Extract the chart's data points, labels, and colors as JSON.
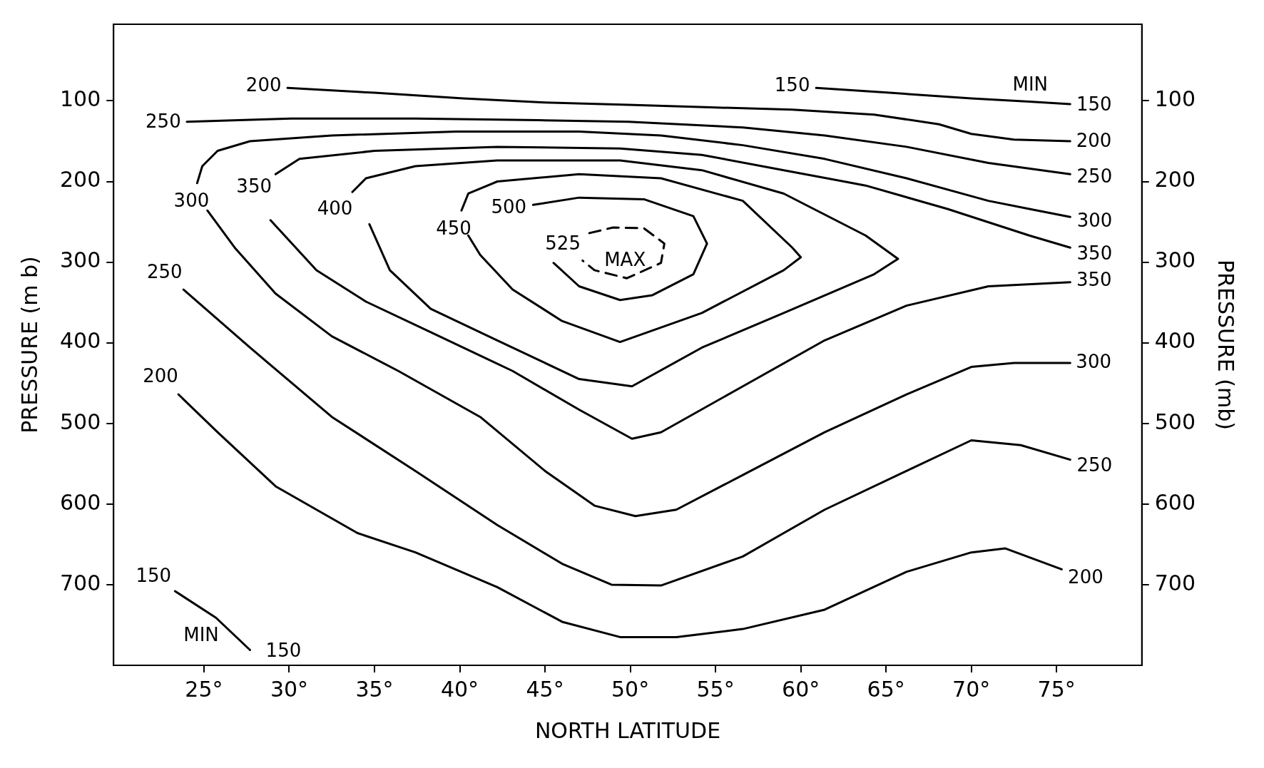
{
  "chart_data": {
    "type": "line",
    "xlabel": "NORTH LATITUDE",
    "ylabel": "PRESSURE (m b)",
    "y2label": "PRESSURE (mb)",
    "xlim": [
      19.7,
      80
    ],
    "xticks": [
      {
        "value": 25,
        "label": "25°"
      },
      {
        "value": 30,
        "label": "30°"
      },
      {
        "value": 35,
        "label": "35°"
      },
      {
        "value": 40,
        "label": "40°"
      },
      {
        "value": 45,
        "label": "45°"
      },
      {
        "value": 50,
        "label": "50°"
      },
      {
        "value": 55,
        "label": "55°"
      },
      {
        "value": 60,
        "label": "60°"
      },
      {
        "value": 65,
        "label": "65°"
      },
      {
        "value": 70,
        "label": "70°"
      },
      {
        "value": 75,
        "label": "75°"
      }
    ],
    "ylim": [
      800,
      5
    ],
    "yticks": [
      100,
      200,
      300,
      400,
      500,
      600,
      700
    ],
    "y2lim": [
      800,
      5
    ],
    "y2ticks": [
      100,
      200,
      300,
      400,
      500,
      600,
      700
    ],
    "grid": false,
    "legend": false,
    "marker": "none",
    "series": [
      {
        "color": "#000000",
        "x": [
          60.9,
          65.2,
          70.0,
          73.4,
          75.8
        ],
        "values": [
          84,
          90,
          97,
          101,
          104
        ]
      },
      {
        "color": "#000000",
        "x": [
          23.3,
          25.7,
          27.7
        ],
        "values": [
          708,
          741,
          781
        ]
      },
      {
        "color": "#000000",
        "x": [
          29.9,
          35.0,
          40.2,
          45.0,
          49.9,
          54.7,
          59.5,
          64.3,
          68.1,
          70.0,
          72.5,
          75.8
        ],
        "values": [
          84,
          90,
          97,
          102,
          105,
          108,
          111,
          117,
          129,
          141,
          148,
          150
        ]
      },
      {
        "color": "#000000",
        "x": [
          23.5,
          25.8,
          29.2,
          34.0,
          37.4,
          42.2,
          46.0,
          49.4,
          52.7,
          56.6,
          61.4,
          66.2,
          70.0,
          72.0,
          75.3
        ],
        "values": [
          464,
          511,
          578,
          636,
          660,
          703,
          746,
          765,
          765,
          755,
          731,
          684,
          660,
          655,
          681
        ]
      },
      {
        "color": "#000000",
        "x": [
          24.0,
          30.1,
          37.4,
          44.6,
          49.9,
          56.6,
          61.4,
          66.2,
          71.0,
          75.8
        ],
        "values": [
          126,
          122,
          122,
          124,
          126,
          133,
          143,
          157,
          177,
          191
        ]
      },
      {
        "color": "#000000",
        "x": [
          23.8,
          27.7,
          32.5,
          37.4,
          42.2,
          46.0,
          48.9,
          51.8,
          56.6,
          61.4,
          66.2,
          70.0,
          72.9,
          75.8
        ],
        "values": [
          334,
          406,
          492,
          559,
          626,
          674,
          700,
          701,
          665,
          607,
          559,
          521,
          527,
          545
        ]
      },
      {
        "color": "#000000",
        "x": [
          24.6,
          24.9,
          25.8,
          27.7,
          32.5,
          39.8,
          47.0,
          51.8,
          56.6,
          61.4,
          66.2,
          71.0,
          73.4,
          75.8
        ],
        "values": [
          202,
          181,
          162,
          150,
          143,
          138,
          138,
          143,
          155,
          172,
          196,
          224,
          234,
          244
        ]
      },
      {
        "color": "#000000",
        "x": [
          25.2,
          26.8,
          29.2,
          32.5,
          36.4,
          41.2,
          45.0,
          47.9,
          50.3,
          52.7,
          56.6,
          61.4,
          66.2,
          70.0,
          72.5,
          75.8
        ],
        "values": [
          236,
          282,
          339,
          392,
          435,
          492,
          559,
          602,
          615,
          607,
          564,
          511,
          464,
          430,
          425,
          425
        ]
      },
      {
        "color": "#000000",
        "x": [
          29.2,
          30.6,
          35.0,
          42.2,
          49.4,
          54.2,
          59.0,
          63.8,
          68.6,
          73.4,
          75.8
        ],
        "values": [
          191,
          172,
          162,
          157,
          159,
          167,
          186,
          205,
          234,
          267,
          282
        ]
      },
      {
        "color": "#000000",
        "x": [
          28.9,
          31.6,
          34.5,
          38.3,
          43.1,
          47.0,
          50.1,
          51.8,
          56.6,
          61.4,
          66.2,
          71.0,
          75.8
        ],
        "values": [
          248,
          310,
          349,
          387,
          435,
          483,
          519,
          511,
          454,
          397,
          354,
          330,
          325
        ]
      },
      {
        "color": "#000000",
        "x": [
          33.7,
          34.5,
          37.4,
          42.2,
          49.4,
          54.2,
          59.0,
          63.8,
          65.7,
          64.3,
          59.0,
          54.2,
          50.1,
          47.0,
          42.2,
          38.3,
          35.9,
          34.7
        ],
        "values": [
          213,
          196,
          181,
          174,
          174,
          186,
          215,
          267,
          296,
          315,
          363,
          406,
          454,
          445,
          397,
          358,
          310,
          253
        ]
      },
      {
        "color": "#000000",
        "x": [
          40.1,
          40.5,
          42.2,
          47.0,
          51.8,
          56.6,
          59.5,
          60.0,
          59.0,
          54.2,
          49.4,
          46.0,
          43.1,
          41.2,
          40.5
        ],
        "values": [
          236,
          215,
          200,
          191,
          196,
          224,
          282,
          294,
          310,
          363,
          399,
          373,
          334,
          291,
          267
        ]
      },
      {
        "color": "#000000",
        "x": [
          44.3,
          47.0,
          50.8,
          53.7,
          54.5,
          53.7,
          51.3,
          49.4,
          47.0,
          45.5
        ],
        "values": [
          229,
          220,
          222,
          243,
          277,
          315,
          341,
          347,
          330,
          301
        ]
      },
      {
        "color": "#000000",
        "line_style": "dashed",
        "x": [
          47.6,
          49.0,
          50.8,
          52.0,
          51.8,
          49.8,
          47.9,
          47.2
        ],
        "values": [
          264,
          257,
          258,
          277,
          301,
          320,
          310,
          298
        ]
      }
    ],
    "annotations": [
      {
        "text": "150",
        "x": 60.9,
        "y": 84
      },
      {
        "text": "MIN",
        "x": 73.4,
        "y": 101
      },
      {
        "text": "150",
        "x": 75.8,
        "y": 104
      },
      {
        "text": "200",
        "x": 29.9,
        "y": 84
      },
      {
        "text": "200",
        "x": 75.8,
        "y": 150
      },
      {
        "text": "250",
        "x": 24.0,
        "y": 126
      },
      {
        "text": "250",
        "x": 75.8,
        "y": 191
      },
      {
        "text": "300",
        "x": 24.6,
        "y": 202
      },
      {
        "text": "350",
        "x": 29.2,
        "y": 191
      },
      {
        "text": "400",
        "x": 33.7,
        "y": 213
      },
      {
        "text": "450",
        "x": 40.1,
        "y": 236
      },
      {
        "text": "500",
        "x": 44.3,
        "y": 229
      },
      {
        "text": "525",
        "x": 47.2,
        "y": 298
      },
      {
        "text": "MAX",
        "x": 49.8,
        "y": 320
      },
      {
        "text": "300",
        "x": 75.8,
        "y": 244
      },
      {
        "text": "350",
        "x": 75.8,
        "y": 282
      },
      {
        "text": "350",
        "x": 75.8,
        "y": 325
      },
      {
        "text": "250",
        "x": 23.8,
        "y": 334
      },
      {
        "text": "300",
        "x": 75.8,
        "y": 425
      },
      {
        "text": "200",
        "x": 23.5,
        "y": 464
      },
      {
        "text": "250",
        "x": 75.8,
        "y": 545
      },
      {
        "text": "200",
        "x": 75.3,
        "y": 681
      },
      {
        "text": "150",
        "x": 23.3,
        "y": 708
      },
      {
        "text": "MIN",
        "x": 25.7,
        "y": 741
      },
      {
        "text": "150",
        "x": 27.7,
        "y": 781
      }
    ]
  }
}
